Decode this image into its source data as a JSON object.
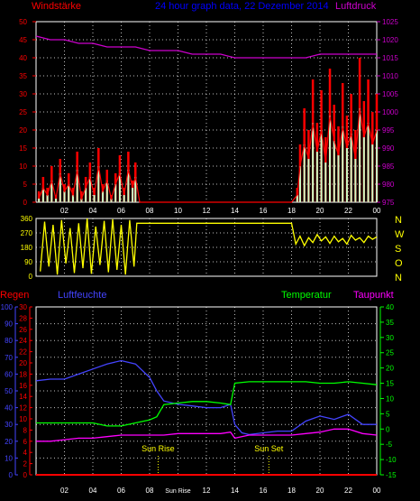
{
  "colors": {
    "background": "#000000",
    "frame": "#ffffff",
    "grid": "#ffffff",
    "wind": "#ff0000",
    "gust": "#ffffff",
    "gust_fill": "#c8ffc8",
    "pressure": "#cc00cc",
    "title": "#0000ff",
    "direction": "#ffff00",
    "rain": "#ff0000",
    "humidity": "#4444ff",
    "temperature": "#00ff00",
    "dewpoint": "#ff00ff",
    "sun": "#ffff00",
    "axis_x": "#ffffff"
  },
  "chart_data": [
    {
      "type": "line",
      "title": "24 hour graph data, 22 Dezember 2014",
      "left_label": "Windstärke",
      "right_label": "Luftdruck",
      "x_ticks": [
        "02",
        "04",
        "06",
        "08",
        "10",
        "12",
        "14",
        "16",
        "18",
        "20",
        "22",
        "00"
      ],
      "y_left_ticks": [
        "0",
        "5",
        "10",
        "15",
        "20",
        "25",
        "30",
        "35",
        "40",
        "45",
        "50"
      ],
      "y_right_ticks": [
        "975",
        "980",
        "985",
        "990",
        "995",
        "1000",
        "1005",
        "1010",
        "1015",
        "1020",
        "1025"
      ],
      "ylim_left": [
        0,
        50
      ],
      "ylim_right": [
        975,
        1025
      ],
      "xlim": [
        0,
        24
      ],
      "series": [
        {
          "name": "Windstärke",
          "axis": "left",
          "x": [
            0.2,
            0.5,
            0.8,
            1.1,
            1.4,
            1.7,
            2.0,
            2.3,
            2.6,
            2.9,
            3.2,
            3.5,
            3.8,
            4.1,
            4.4,
            4.7,
            5.0,
            5.3,
            5.6,
            5.9,
            6.2,
            6.5,
            6.8,
            7.0,
            7.3,
            8,
            10,
            12,
            14,
            16,
            18,
            18.4,
            18.6,
            18.9,
            19.2,
            19.5,
            19.8,
            20.1,
            20.4,
            20.7,
            21.0,
            21.3,
            21.6,
            21.9,
            22.2,
            22.5,
            22.8,
            23.1,
            23.4,
            23.7,
            24.0
          ],
          "y": [
            1,
            4,
            2,
            6,
            1,
            8,
            3,
            5,
            2,
            9,
            1,
            4,
            7,
            2,
            10,
            3,
            6,
            1,
            5,
            8,
            2,
            9,
            4,
            7,
            0,
            0,
            0,
            0,
            0,
            0,
            0,
            2,
            10,
            16,
            12,
            22,
            14,
            20,
            11,
            24,
            17,
            13,
            21,
            15,
            19,
            12,
            26,
            18,
            22,
            16,
            20
          ]
        },
        {
          "name": "Böen",
          "axis": "left",
          "x": [
            0.2,
            0.5,
            0.8,
            1.1,
            1.4,
            1.7,
            2.0,
            2.3,
            2.6,
            2.9,
            3.2,
            3.5,
            3.8,
            4.1,
            4.4,
            4.7,
            5.0,
            5.3,
            5.6,
            5.9,
            6.2,
            6.5,
            6.8,
            7.0,
            7.3,
            8,
            10,
            12,
            14,
            16,
            18,
            18.4,
            18.6,
            18.9,
            19.2,
            19.5,
            19.8,
            20.1,
            20.4,
            20.7,
            21.0,
            21.3,
            21.6,
            21.9,
            22.2,
            22.5,
            22.8,
            23.1,
            23.4,
            23.7,
            24.0
          ],
          "y": [
            3,
            7,
            4,
            10,
            2,
            12,
            5,
            8,
            4,
            14,
            3,
            7,
            11,
            4,
            15,
            5,
            9,
            2,
            8,
            13,
            4,
            14,
            6,
            11,
            0,
            0,
            0,
            0,
            0,
            0,
            0,
            4,
            16,
            26,
            20,
            34,
            22,
            31,
            18,
            37,
            27,
            21,
            33,
            24,
            30,
            20,
            40,
            28,
            34,
            25,
            30
          ]
        },
        {
          "name": "Luftdruck",
          "axis": "right",
          "x": [
            0,
            1,
            2,
            3,
            4,
            5,
            6,
            7,
            8,
            9,
            10,
            11,
            12,
            13,
            14,
            15,
            16,
            17,
            18,
            19,
            20,
            21,
            22,
            23,
            24
          ],
          "y": [
            1021,
            1020,
            1020,
            1019,
            1019,
            1018,
            1018,
            1018,
            1017,
            1017,
            1017,
            1016,
            1016,
            1016,
            1015,
            1015,
            1015,
            1015,
            1015,
            1015,
            1016,
            1016,
            1016,
            1016,
            1016
          ]
        }
      ]
    },
    {
      "type": "line",
      "x_ticks": [
        "02",
        "04",
        "06",
        "08",
        "10",
        "12",
        "14",
        "16",
        "18",
        "20",
        "22",
        "00"
      ],
      "y_ticks": [
        "0",
        "90",
        "180",
        "270",
        "360"
      ],
      "ylim": [
        0,
        360
      ],
      "right_labels": [
        "N",
        "W",
        "S",
        "O",
        "N"
      ],
      "series": [
        {
          "name": "Windrichtung",
          "x": [
            0.3,
            0.6,
            0.9,
            1.2,
            1.5,
            1.8,
            2.1,
            2.4,
            2.7,
            3.0,
            3.3,
            3.6,
            3.9,
            4.2,
            4.5,
            4.8,
            5.1,
            5.4,
            5.7,
            6.0,
            6.3,
            6.6,
            6.9,
            7.1,
            8,
            10,
            12,
            14,
            16,
            18,
            18.3,
            18.6,
            18.9,
            19.2,
            19.5,
            19.8,
            20.1,
            20.4,
            20.7,
            21.0,
            21.3,
            21.6,
            21.9,
            22.2,
            22.5,
            22.8,
            23.1,
            23.4,
            23.7,
            24.0
          ],
          "y": [
            30,
            340,
            60,
            320,
            10,
            350,
            80,
            300,
            20,
            330,
            50,
            360,
            15,
            310,
            70,
            345,
            25,
            355,
            40,
            320,
            10,
            350,
            60,
            330,
            330,
            330,
            330,
            330,
            330,
            330,
            200,
            250,
            190,
            240,
            210,
            260,
            220,
            245,
            205,
            250,
            215,
            235,
            200,
            255,
            225,
            240,
            210,
            250,
            230,
            245
          ]
        }
      ]
    },
    {
      "type": "line",
      "left_label_1": "Regen",
      "left_label_2": "Luftfeuchte",
      "right_label_1": "Temperatur",
      "right_label_2": "Taupunkt",
      "x_ticks": [
        "02",
        "04",
        "06",
        "08",
        "Sun Rise",
        "12",
        "14",
        "16",
        "18",
        "20",
        "22",
        "00"
      ],
      "humidity_ticks": [
        "0",
        "10",
        "20",
        "30",
        "40",
        "50",
        "60",
        "70",
        "80",
        "90",
        "100"
      ],
      "rain_ticks": [
        "0",
        "2",
        "4",
        "6",
        "8",
        "10",
        "12",
        "14",
        "16",
        "18",
        "20",
        "22",
        "24",
        "26",
        "28",
        "30"
      ],
      "temp_ticks": [
        "-15",
        "-10",
        "-5",
        "0",
        "5",
        "10",
        "15",
        "20",
        "25",
        "30",
        "35",
        "40"
      ],
      "ylim_humidity": [
        0,
        100
      ],
      "ylim_temperature": [
        -15,
        40
      ],
      "sun_rise_label": "Sun Rise",
      "sun_set_label": "Sun Set",
      "sun_rise_x": 8.6,
      "sun_set_x": 16.4,
      "series": [
        {
          "name": "Luftfeuchte",
          "axis": "humidity",
          "x": [
            0,
            1,
            2,
            3,
            4,
            5,
            6,
            7,
            8,
            8.5,
            9,
            10,
            11,
            12,
            13,
            13.7,
            14,
            14.5,
            15,
            16,
            17,
            18,
            19,
            20,
            21,
            22,
            23,
            24
          ],
          "y": [
            56,
            57,
            57,
            60,
            63,
            66,
            68,
            66,
            58,
            50,
            44,
            42,
            41,
            40,
            40,
            42,
            30,
            25,
            24,
            25,
            26,
            26,
            32,
            35,
            33,
            36,
            30,
            30
          ]
        },
        {
          "name": "Temperatur",
          "axis": "temperature",
          "x": [
            0,
            1,
            2,
            3,
            4,
            5,
            6,
            7,
            8,
            8.5,
            9,
            10,
            11,
            12,
            13,
            13.7,
            14,
            15,
            16,
            17,
            18,
            19,
            20,
            21,
            22,
            23,
            24
          ],
          "y": [
            2,
            2,
            2,
            2,
            2,
            1,
            1,
            2,
            3,
            4,
            8,
            8.5,
            9,
            9,
            8.5,
            8,
            15,
            15.5,
            15.5,
            15.5,
            15.5,
            15.5,
            15,
            15,
            15.5,
            15,
            14.5
          ]
        },
        {
          "name": "Taupunkt",
          "axis": "temperature",
          "x": [
            0,
            1,
            2,
            3,
            4,
            5,
            6,
            7,
            8,
            9,
            10,
            11,
            12,
            13,
            13.7,
            14,
            15,
            16,
            17,
            18,
            19,
            20,
            21,
            22,
            23,
            24
          ],
          "y": [
            -4,
            -4,
            -3.5,
            -3,
            -3,
            -2.5,
            -2,
            -2,
            -2,
            -2,
            -1.5,
            -1.5,
            -1.5,
            -1.5,
            -1,
            -3,
            -2,
            -2,
            -2,
            -2,
            -1.5,
            -1,
            0,
            0,
            -1.5,
            -2
          ]
        },
        {
          "name": "Regen",
          "axis": "rain",
          "x": [
            0,
            24
          ],
          "y": [
            0,
            0
          ]
        }
      ]
    }
  ]
}
